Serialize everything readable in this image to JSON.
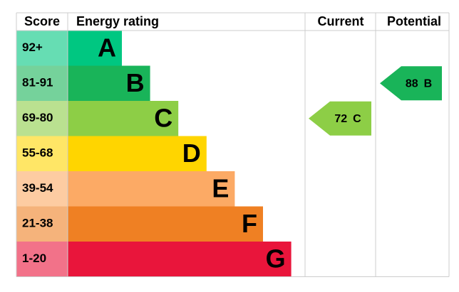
{
  "header": {
    "score": "Score",
    "rating": "Energy rating",
    "current": "Current",
    "potential": "Potential"
  },
  "bands": [
    {
      "score": "92+",
      "letter": "A",
      "color": "#00c781"
    },
    {
      "score": "81-91",
      "letter": "B",
      "color": "#19b459"
    },
    {
      "score": "69-80",
      "letter": "C",
      "color": "#8dce46"
    },
    {
      "score": "55-68",
      "letter": "D",
      "color": "#ffd500"
    },
    {
      "score": "39-54",
      "letter": "E",
      "color": "#fcaa65"
    },
    {
      "score": "21-38",
      "letter": "F",
      "color": "#ef8023"
    },
    {
      "score": "1-20",
      "letter": "G",
      "color": "#e9153b"
    }
  ],
  "current": {
    "value": 72,
    "letter": "C"
  },
  "potential": {
    "value": 88,
    "letter": "B"
  }
}
